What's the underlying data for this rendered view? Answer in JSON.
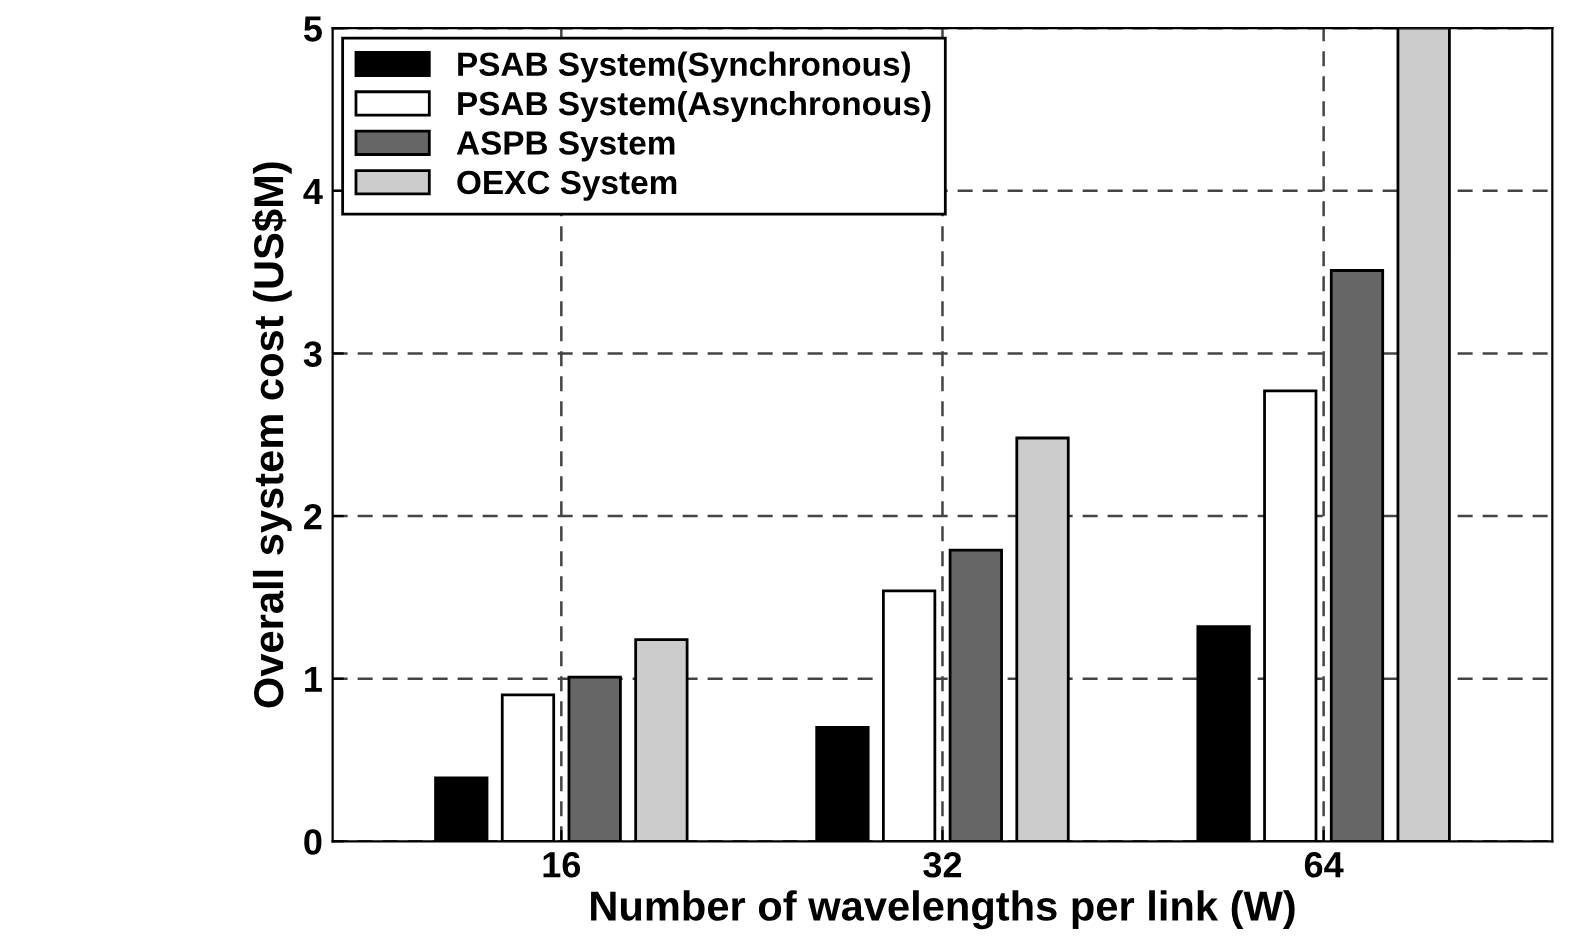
{
  "chart_data": {
    "type": "bar",
    "xlabel": "Number of wavelengths per link (W)",
    "ylabel": "Overall system cost (US$M)",
    "categories": [
      "16",
      "32",
      "64"
    ],
    "series": [
      {
        "name": "PSAB System(Synchronous)",
        "color": "#000000",
        "values": [
          0.39,
          0.7,
          1.32
        ]
      },
      {
        "name": "PSAB System(Asynchronous)",
        "color": "#ffffff",
        "values": [
          0.9,
          1.54,
          2.77
        ]
      },
      {
        "name": "ASPB System",
        "color": "#666666",
        "values": [
          1.01,
          1.79,
          3.51
        ]
      },
      {
        "name": "OEXC System",
        "color": "#cccccc",
        "values": [
          1.24,
          2.48,
          5.0
        ]
      }
    ],
    "ylim": [
      0,
      5
    ],
    "yticks": [
      0,
      1,
      2,
      3,
      4,
      5
    ],
    "grid": true,
    "legend": "top left"
  }
}
